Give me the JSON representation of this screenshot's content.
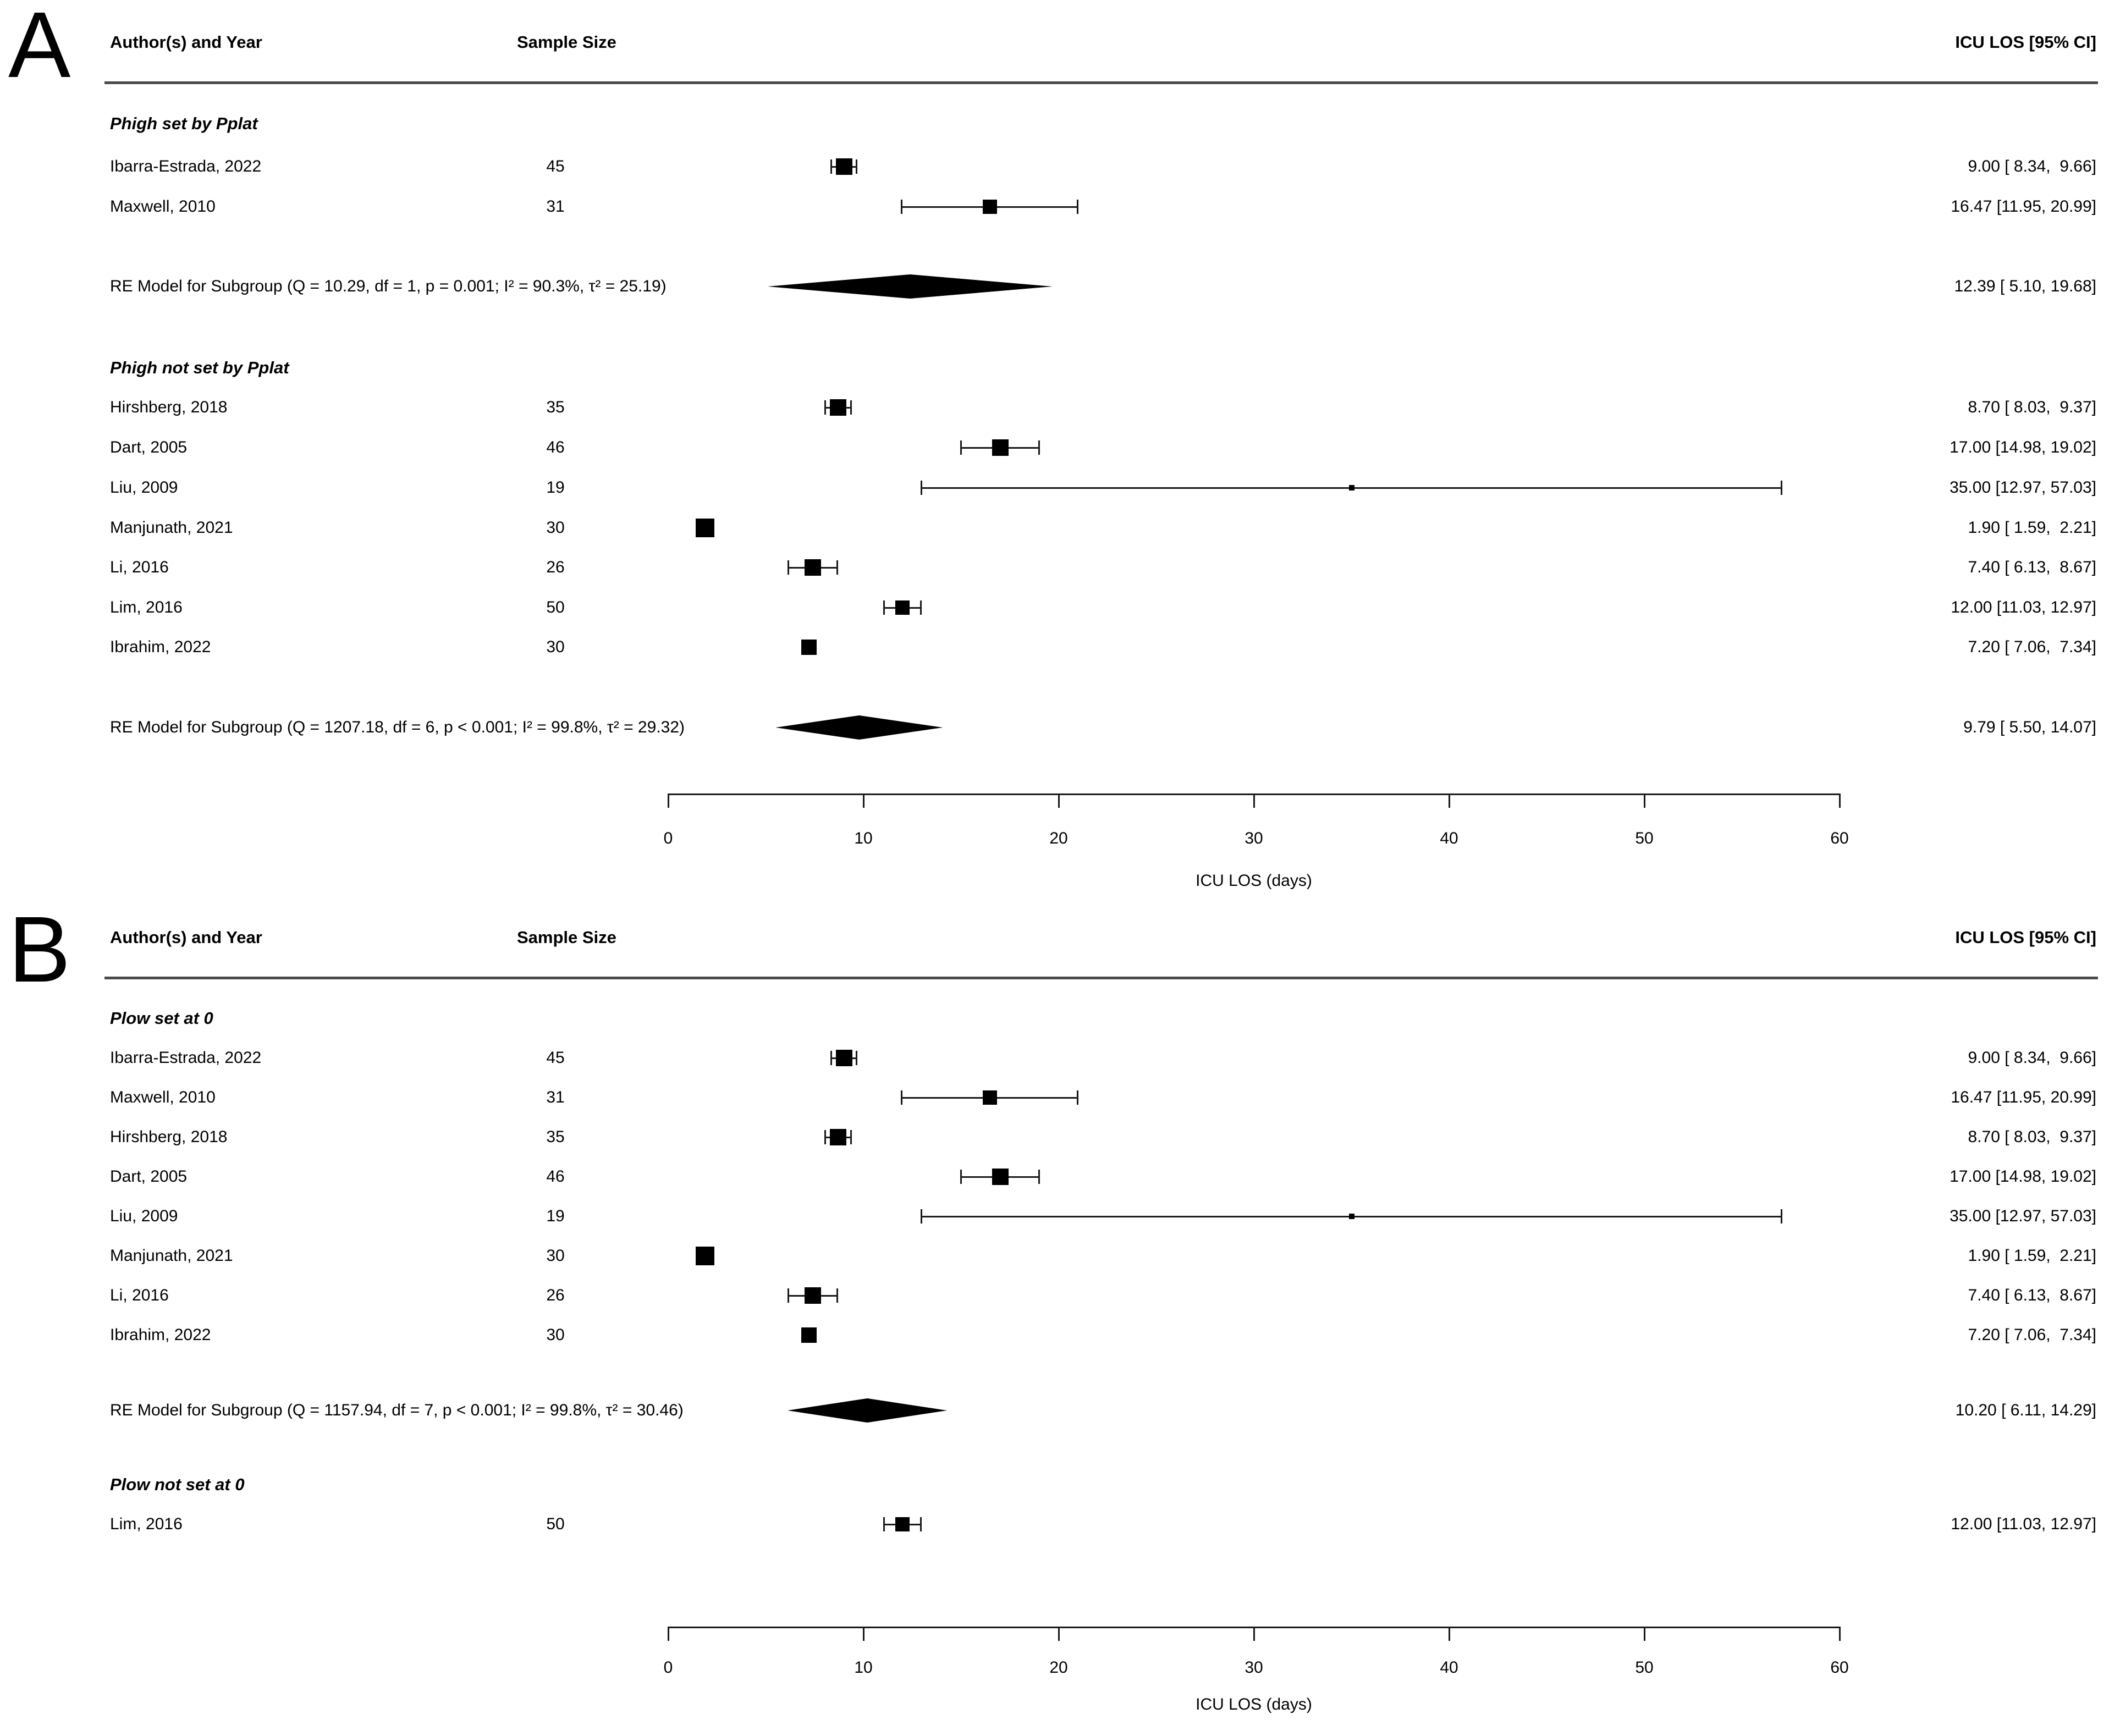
{
  "style": {
    "ink": "#000000",
    "rule_color": "#4b4b4b",
    "background": "#ffffff"
  },
  "chart_data": [
    {
      "type": "forest_plot",
      "panel_label": "A",
      "columns": {
        "author": "Author(s) and Year",
        "sample_size": "Sample Size",
        "estimate": "ICU LOS [95% CI]"
      },
      "axis": {
        "min": 0,
        "max": 60,
        "ticks": [
          0,
          10,
          20,
          30,
          40,
          50,
          60
        ],
        "title": "ICU LOS (days)"
      },
      "subgroups": [
        {
          "heading": "Phigh set by Pplat",
          "studies": [
            {
              "author": "Ibarra-Estrada, 2022",
              "sample_size": "45",
              "estimate": 9.0,
              "ci_low": 8.34,
              "ci_high": 9.66,
              "ci_text": "9.00 [ 8.34,  9.66]",
              "marker_size": 30
            },
            {
              "author": "Maxwell, 2010",
              "sample_size": "31",
              "estimate": 16.47,
              "ci_low": 11.95,
              "ci_high": 20.99,
              "ci_text": "16.47 [11.95, 20.99]",
              "marker_size": 26
            }
          ],
          "summary": {
            "label": "RE Model for Subgroup (Q = 10.29, df = 1, p = 0.001; I² = 90.3%, τ² = 25.19)",
            "estimate": 12.39,
            "ci_low": 5.1,
            "ci_high": 19.68,
            "ci_text": "12.39 [ 5.10, 19.68]"
          }
        },
        {
          "heading": "Phigh not set by Pplat",
          "studies": [
            {
              "author": "Hirshberg, 2018",
              "sample_size": "35",
              "estimate": 8.7,
              "ci_low": 8.03,
              "ci_high": 9.37,
              "ci_text": "8.70 [ 8.03,  9.37]",
              "marker_size": 30
            },
            {
              "author": "Dart, 2005",
              "sample_size": "46",
              "estimate": 17.0,
              "ci_low": 14.98,
              "ci_high": 19.02,
              "ci_text": "17.00 [14.98, 19.02]",
              "marker_size": 30
            },
            {
              "author": "Liu, 2009",
              "sample_size": "19",
              "estimate": 35.0,
              "ci_low": 12.97,
              "ci_high": 57.03,
              "ci_text": "35.00 [12.97, 57.03]",
              "marker_size": 10
            },
            {
              "author": "Manjunath, 2021",
              "sample_size": "30",
              "estimate": 1.9,
              "ci_low": 1.59,
              "ci_high": 2.21,
              "ci_text": "1.90 [ 1.59,  2.21]",
              "marker_size": 34
            },
            {
              "author": "Li, 2016",
              "sample_size": "26",
              "estimate": 7.4,
              "ci_low": 6.13,
              "ci_high": 8.67,
              "ci_text": "7.40 [ 6.13,  8.67]",
              "marker_size": 30
            },
            {
              "author": "Lim, 2016",
              "sample_size": "50",
              "estimate": 12.0,
              "ci_low": 11.03,
              "ci_high": 12.97,
              "ci_text": "12.00 [11.03, 12.97]",
              "marker_size": 26
            },
            {
              "author": "Ibrahim, 2022",
              "sample_size": "30",
              "estimate": 7.2,
              "ci_low": 7.06,
              "ci_high": 7.34,
              "ci_text": "7.20 [ 7.06,  7.34]",
              "marker_size": 28
            }
          ],
          "summary": {
            "label": "RE Model for Subgroup (Q = 1207.18, df = 6, p < 0.001; I² = 99.8%, τ² = 29.32)",
            "estimate": 9.79,
            "ci_low": 5.5,
            "ci_high": 14.07,
            "ci_text": "9.79 [ 5.50, 14.07]"
          }
        }
      ]
    },
    {
      "type": "forest_plot",
      "panel_label": "B",
      "columns": {
        "author": "Author(s) and Year",
        "sample_size": "Sample Size",
        "estimate": "ICU LOS [95% CI]"
      },
      "axis": {
        "min": 0,
        "max": 60,
        "ticks": [
          0,
          10,
          20,
          30,
          40,
          50,
          60
        ],
        "title": "ICU LOS (days)"
      },
      "subgroups": [
        {
          "heading": "Plow set at 0",
          "studies": [
            {
              "author": "Ibarra-Estrada, 2022",
              "sample_size": "45",
              "estimate": 9.0,
              "ci_low": 8.34,
              "ci_high": 9.66,
              "ci_text": "9.00 [ 8.34,  9.66]",
              "marker_size": 30
            },
            {
              "author": "Maxwell, 2010",
              "sample_size": "31",
              "estimate": 16.47,
              "ci_low": 11.95,
              "ci_high": 20.99,
              "ci_text": "16.47 [11.95, 20.99]",
              "marker_size": 26
            },
            {
              "author": "Hirshberg, 2018",
              "sample_size": "35",
              "estimate": 8.7,
              "ci_low": 8.03,
              "ci_high": 9.37,
              "ci_text": "8.70 [ 8.03,  9.37]",
              "marker_size": 30
            },
            {
              "author": "Dart, 2005",
              "sample_size": "46",
              "estimate": 17.0,
              "ci_low": 14.98,
              "ci_high": 19.02,
              "ci_text": "17.00 [14.98, 19.02]",
              "marker_size": 30
            },
            {
              "author": "Liu, 2009",
              "sample_size": "19",
              "estimate": 35.0,
              "ci_low": 12.97,
              "ci_high": 57.03,
              "ci_text": "35.00 [12.97, 57.03]",
              "marker_size": 10
            },
            {
              "author": "Manjunath, 2021",
              "sample_size": "30",
              "estimate": 1.9,
              "ci_low": 1.59,
              "ci_high": 2.21,
              "ci_text": "1.90 [ 1.59,  2.21]",
              "marker_size": 34
            },
            {
              "author": "Li, 2016",
              "sample_size": "26",
              "estimate": 7.4,
              "ci_low": 6.13,
              "ci_high": 8.67,
              "ci_text": "7.40 [ 6.13,  8.67]",
              "marker_size": 30
            },
            {
              "author": "Ibrahim, 2022",
              "sample_size": "30",
              "estimate": 7.2,
              "ci_low": 7.06,
              "ci_high": 7.34,
              "ci_text": "7.20 [ 7.06,  7.34]",
              "marker_size": 28
            }
          ],
          "summary": {
            "label": "RE Model for Subgroup (Q = 1157.94, df = 7, p < 0.001; I² = 99.8%, τ² = 30.46)",
            "estimate": 10.2,
            "ci_low": 6.11,
            "ci_high": 14.29,
            "ci_text": "10.20 [ 6.11, 14.29]"
          }
        },
        {
          "heading": "Plow not set at 0",
          "studies": [
            {
              "author": "Lim, 2016",
              "sample_size": "50",
              "estimate": 12.0,
              "ci_low": 11.03,
              "ci_high": 12.97,
              "ci_text": "12.00 [11.03, 12.97]",
              "marker_size": 26
            }
          ],
          "summary": null
        }
      ]
    }
  ]
}
